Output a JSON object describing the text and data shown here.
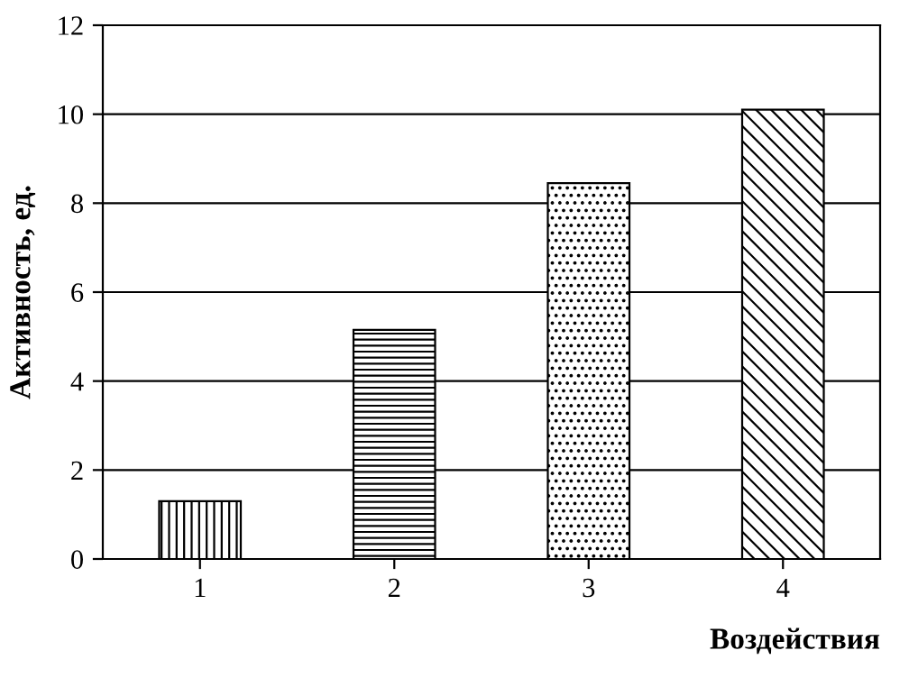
{
  "chart_data": {
    "type": "bar",
    "xlabel": "Воздействия",
    "ylabel": "Активность, ед.",
    "categories": [
      "1",
      "2",
      "3",
      "4"
    ],
    "values": [
      1.3,
      5.15,
      8.45,
      10.1
    ],
    "color": "#000000",
    "ylim": [
      0,
      12
    ],
    "yticks": [
      0,
      2,
      4,
      6,
      8,
      10,
      12
    ],
    "grid": "y"
  }
}
